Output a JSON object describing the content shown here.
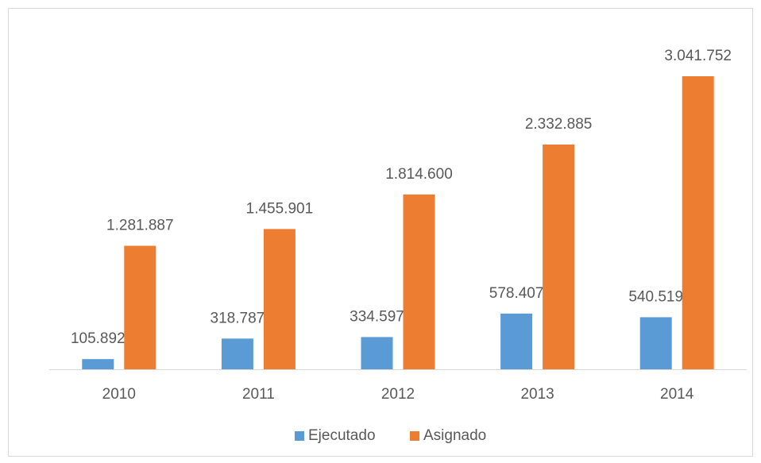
{
  "chart_data": {
    "type": "bar",
    "categories": [
      "2010",
      "2011",
      "2012",
      "2013",
      "2014"
    ],
    "series": [
      {
        "name": "Ejecutado",
        "color": "#5b9bd5",
        "values": [
          105892,
          318787,
          334597,
          578407,
          540519
        ],
        "value_labels": [
          "105.892",
          "318.787",
          "334.597",
          "578.407",
          "540.519"
        ]
      },
      {
        "name": "Asignado",
        "color": "#ed7d31",
        "values": [
          1281887,
          1455901,
          1814600,
          2332885,
          3041752
        ],
        "value_labels": [
          "1.281.887",
          "1.455.901",
          "1.814.600",
          "2.332.885",
          "3.041.752"
        ]
      }
    ],
    "legend": "bottom"
  }
}
